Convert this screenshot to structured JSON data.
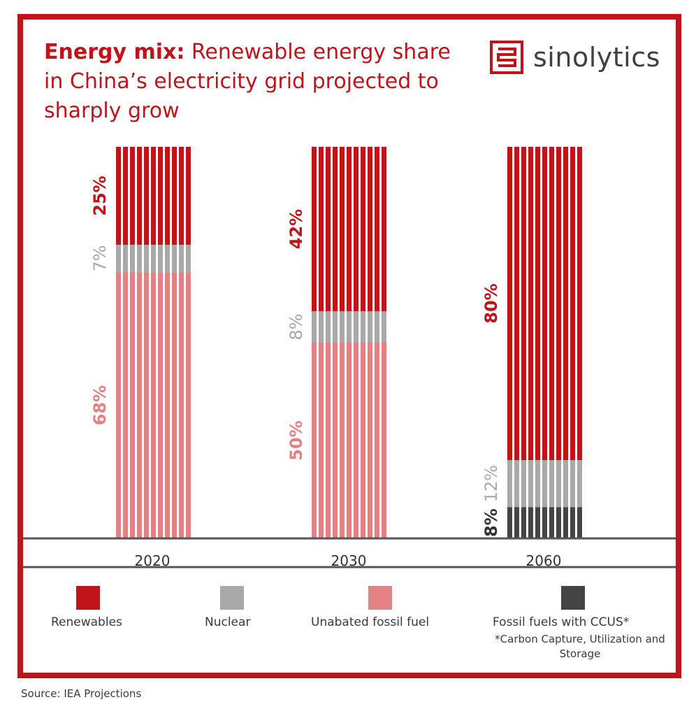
{
  "title": {
    "bold": "Energy mix:",
    "rest": " Renewable energy share in China’s electricity grid projected to sharply grow"
  },
  "logo": {
    "text": "sinolytics",
    "icon": "meander-logo-icon"
  },
  "source": "Source: IEA Projections",
  "colors": {
    "renewables": "#c0141b",
    "nuclear": "#a9a9a9",
    "fossil": "#e38183",
    "ccus": "#444444",
    "frame": "#c0141b"
  },
  "chart_data": {
    "type": "bar",
    "stacked": true,
    "categories": [
      "2020",
      "2030",
      "2060"
    ],
    "series": [
      {
        "name": "Renewables",
        "key": "renewables",
        "values": [
          25,
          42,
          80
        ],
        "labels": [
          "25%",
          "42%",
          "80%"
        ]
      },
      {
        "name": "Nuclear",
        "key": "nuclear",
        "values": [
          7,
          8,
          12
        ],
        "labels": [
          "7%",
          "8%",
          "12%"
        ]
      },
      {
        "name": "Unabated fossil fuel",
        "key": "fossil",
        "values": [
          68,
          50,
          0
        ],
        "labels": [
          "68%",
          "50%",
          ""
        ]
      },
      {
        "name": "Fossil fuels with CCUS*",
        "key": "ccus",
        "values": [
          0,
          0,
          8
        ],
        "labels": [
          "",
          "",
          "8%"
        ]
      }
    ],
    "ylim": [
      0,
      100
    ]
  },
  "legend": {
    "items": [
      {
        "label": "Renewables",
        "key": "renewables"
      },
      {
        "label": "Nuclear",
        "key": "nuclear"
      },
      {
        "label": "Unabated fossil fuel",
        "key": "fossil"
      },
      {
        "label": "Fossil fuels with CCUS*",
        "key": "ccus"
      }
    ],
    "note": "*Carbon Capture, Utilization and Storage"
  }
}
